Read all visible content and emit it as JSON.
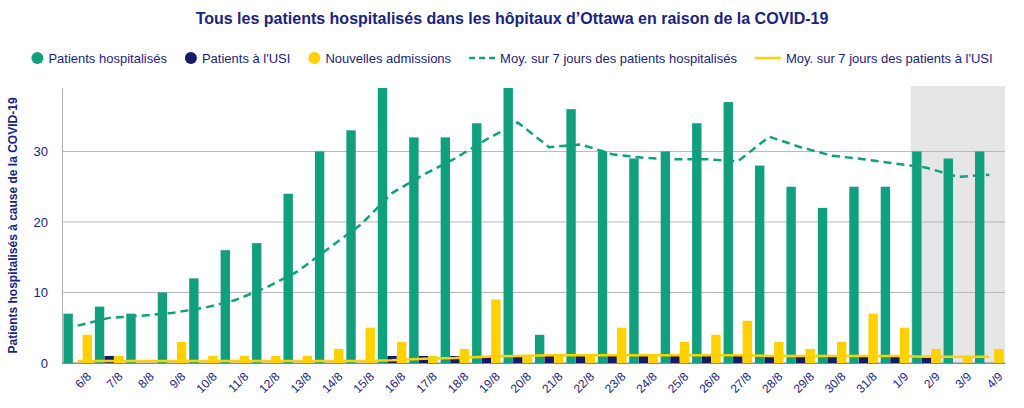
{
  "chart_data": {
    "type": "bar",
    "title": "Tous les patients hospitalisés dans les hôpitaux d’Ottawa en raison de la COVID-19",
    "y_label": "Patients hospitalisés à cause de la COVID-19",
    "categories": [
      "6/8",
      "7/8",
      "8/8",
      "9/8",
      "10/8",
      "11/8",
      "12/8",
      "13/8",
      "14/8",
      "15/8",
      "16/8",
      "17/8",
      "18/8",
      "19/8",
      "20/8",
      "21/8",
      "22/8",
      "23/8",
      "24/8",
      "25/8",
      "26/8",
      "27/8",
      "28/8",
      "29/8",
      "30/8",
      "31/8",
      "1/9",
      "2/9",
      "3/9",
      "4/9"
    ],
    "shaded_categories": [
      "2/9",
      "3/9",
      "4/9"
    ],
    "series": [
      {
        "name": "Patients hospitalisés",
        "type": "bar",
        "color": "#11a07e",
        "values": [
          7,
          8,
          7,
          10,
          12,
          16,
          17,
          24,
          30,
          33,
          39,
          32,
          32,
          34,
          39,
          4,
          36,
          30,
          29,
          30,
          34,
          37,
          28,
          25,
          22,
          25,
          25,
          30,
          29,
          30
        ]
      },
      {
        "name": "Patients à l'USI",
        "type": "bar",
        "color": "#141a66",
        "values": [
          0,
          1,
          0,
          0,
          0,
          0,
          0,
          0,
          0,
          0,
          1,
          1,
          1,
          1,
          1,
          1,
          1,
          1,
          1,
          1,
          1,
          1,
          1,
          1,
          1,
          1,
          1,
          1,
          0,
          0
        ]
      },
      {
        "name": "Nouvelles admissions",
        "type": "bar",
        "color": "#ffd100",
        "values": [
          4,
          1,
          0,
          3,
          1,
          1,
          1,
          1,
          2,
          5,
          3,
          1,
          2,
          9,
          1,
          1,
          1,
          5,
          1,
          3,
          4,
          6,
          3,
          2,
          3,
          7,
          5,
          2,
          1,
          2
        ]
      },
      {
        "name": "Moy. sur 7 jours des patients hospitalisés",
        "type": "line",
        "line_style": "dashed",
        "color": "#11a07e",
        "values": [
          5.3,
          6.4,
          6.7,
          7.1,
          7.8,
          8.9,
          10.7,
          13,
          16.3,
          19.6,
          24.1,
          26.7,
          29,
          31.7,
          34.1,
          30.6,
          31,
          29.6,
          29.1,
          28.9,
          28.9,
          28.6,
          32.1,
          30.6,
          29.4,
          28.9,
          28.3,
          27.7,
          26.4,
          26.7
        ]
      },
      {
        "name": "Moy. sur 7 jours des patients à l'USI",
        "type": "line",
        "line_style": "solid",
        "color": "#ffd100",
        "values": [
          0.3,
          0.3,
          0.3,
          0.3,
          0.3,
          0.3,
          0.3,
          0.3,
          0.3,
          0.3,
          0.4,
          0.6,
          0.7,
          0.9,
          1,
          1.1,
          1.1,
          1.1,
          1.1,
          1.1,
          1.1,
          1.1,
          1,
          1,
          1,
          1,
          1,
          0.9,
          0.9,
          0.9
        ]
      }
    ],
    "ylim": [
      0,
      39
    ],
    "yticks": [
      0,
      10,
      20,
      30
    ],
    "grid": true,
    "legend": "top"
  }
}
